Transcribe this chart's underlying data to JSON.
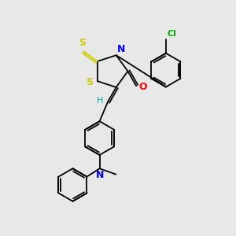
{
  "background_color": "#e8e8e8",
  "bond_color": "#000000",
  "atom_colors": {
    "S": "#cccc00",
    "N": "#0000ff",
    "O": "#ff0000",
    "Cl": "#00aa00",
    "H": "#00aaaa",
    "C": "#000000"
  },
  "font_size": 8,
  "fig_width": 3.0,
  "fig_height": 3.0,
  "dpi": 100
}
